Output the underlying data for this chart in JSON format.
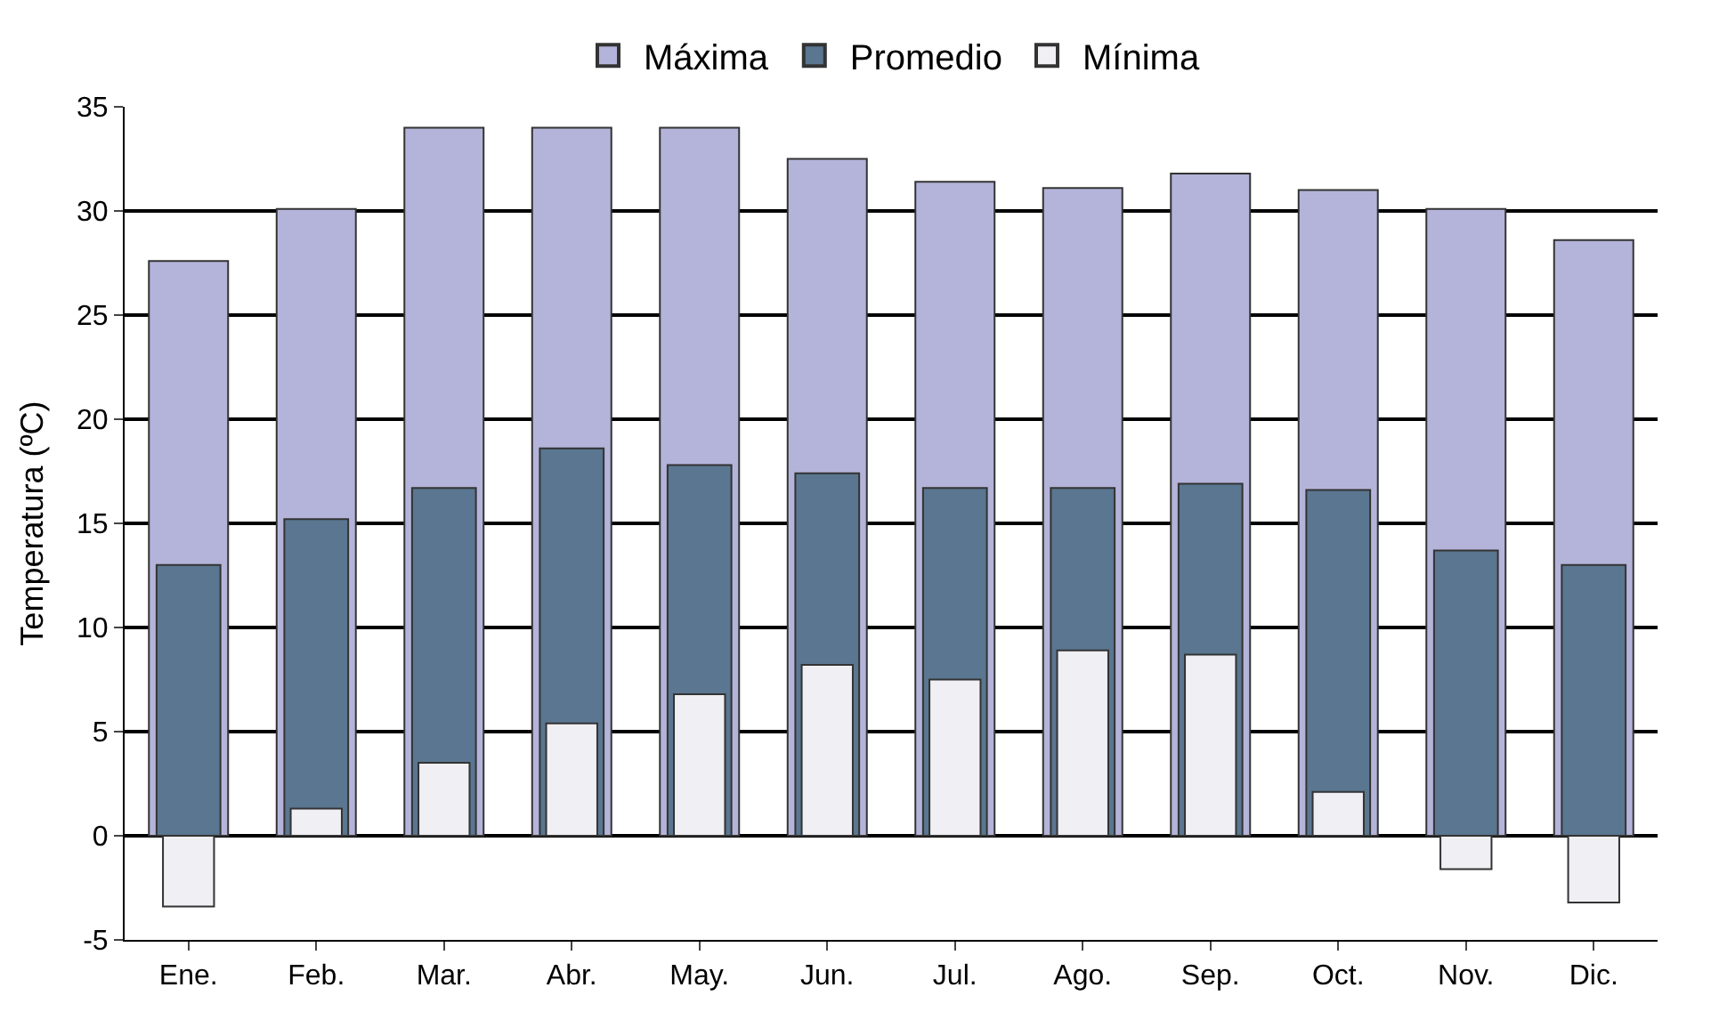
{
  "chart_data": {
    "type": "bar",
    "ylabel": "Temperatura (ºC)",
    "categories": [
      "Ene.",
      "Feb.",
      "Mar.",
      "Abr.",
      "May.",
      "Jun.",
      "Jul.",
      "Ago.",
      "Sep.",
      "Oct.",
      "Nov.",
      "Dic."
    ],
    "series": [
      {
        "name": "Máxima",
        "color": "#b4b4da",
        "values": [
          27.6,
          30.1,
          34.0,
          34.0,
          34.0,
          32.5,
          31.4,
          31.1,
          31.8,
          31.0,
          30.1,
          28.6
        ]
      },
      {
        "name": "Promedio",
        "color": "#5a7690",
        "values": [
          13.0,
          15.2,
          16.7,
          18.6,
          17.8,
          17.4,
          16.7,
          16.7,
          16.9,
          16.6,
          13.7,
          13.0
        ]
      },
      {
        "name": "Mínima",
        "color": "#f0f0f4",
        "values": [
          -3.4,
          1.3,
          3.5,
          5.4,
          6.8,
          8.2,
          7.5,
          8.9,
          8.7,
          2.1,
          -1.6,
          -3.2
        ]
      }
    ],
    "ylim": [
      -5,
      35
    ],
    "yticks": [
      -5,
      0,
      5,
      10,
      15,
      20,
      25,
      30,
      35
    ],
    "grid": "y",
    "legend": "top"
  }
}
